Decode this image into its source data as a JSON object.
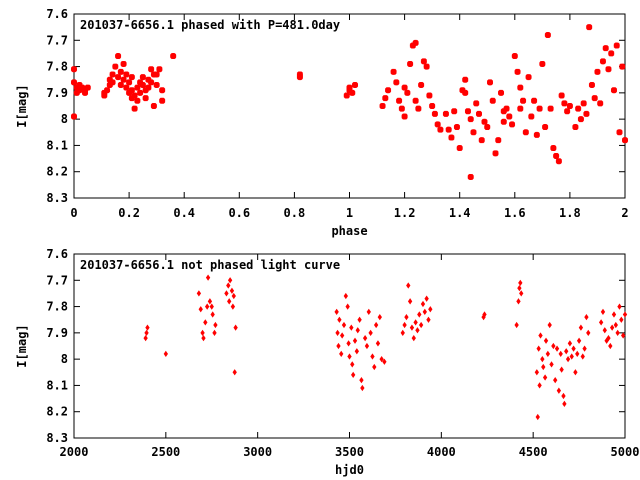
{
  "chart_data": [
    {
      "type": "scatter",
      "title": "201037-6656.1 phased with P=481.0day",
      "xlabel": "phase",
      "ylabel": "I[mag]",
      "xlim": [
        0,
        2
      ],
      "ylim": [
        8.3,
        7.6
      ],
      "y_inverted": true,
      "xticks": [
        0,
        0.2,
        0.4,
        0.6,
        0.8,
        1,
        1.2,
        1.4,
        1.6,
        1.8,
        2
      ],
      "xtick_labels": [
        "0",
        "0.2",
        "0.4",
        "0.6",
        "0.8",
        "1",
        "1.2",
        "1.4",
        "1.6",
        "1.8",
        "2"
      ],
      "yticks": [
        7.6,
        7.7,
        7.8,
        7.9,
        8,
        8.1,
        8.2,
        8.3
      ],
      "ytick_labels": [
        "7.6",
        "7.7",
        "7.8",
        "7.9",
        "8",
        "8.1",
        "8.2",
        "8.3"
      ],
      "marker": "star",
      "color": "#ff0000",
      "points": [
        [
          0.0,
          7.81
        ],
        [
          0.0,
          7.86
        ],
        [
          0.0,
          7.99
        ],
        [
          0.01,
          7.88
        ],
        [
          0.01,
          7.9
        ],
        [
          0.02,
          7.87
        ],
        [
          0.02,
          7.89
        ],
        [
          0.03,
          7.88
        ],
        [
          0.04,
          7.9
        ],
        [
          0.04,
          7.89
        ],
        [
          0.05,
          7.88
        ],
        [
          0.11,
          7.9
        ],
        [
          0.11,
          7.91
        ],
        [
          0.12,
          7.89
        ],
        [
          0.13,
          7.87
        ],
        [
          0.13,
          7.85
        ],
        [
          0.14,
          7.83
        ],
        [
          0.14,
          7.86
        ],
        [
          0.15,
          7.8
        ],
        [
          0.16,
          7.76
        ],
        [
          0.16,
          7.84
        ],
        [
          0.17,
          7.82
        ],
        [
          0.17,
          7.87
        ],
        [
          0.18,
          7.79
        ],
        [
          0.18,
          7.85
        ],
        [
          0.19,
          7.83
        ],
        [
          0.19,
          7.88
        ],
        [
          0.2,
          7.9
        ],
        [
          0.2,
          7.86
        ],
        [
          0.21,
          7.92
        ],
        [
          0.21,
          7.84
        ],
        [
          0.21,
          7.89
        ],
        [
          0.22,
          7.96
        ],
        [
          0.22,
          7.91
        ],
        [
          0.23,
          7.88
        ],
        [
          0.23,
          7.93
        ],
        [
          0.24,
          7.9
        ],
        [
          0.24,
          7.86
        ],
        [
          0.25,
          7.87
        ],
        [
          0.25,
          7.84
        ],
        [
          0.26,
          7.89
        ],
        [
          0.26,
          7.92
        ],
        [
          0.27,
          7.88
        ],
        [
          0.27,
          7.85
        ],
        [
          0.28,
          7.81
        ],
        [
          0.28,
          7.86
        ],
        [
          0.29,
          7.83
        ],
        [
          0.29,
          7.95
        ],
        [
          0.3,
          7.83
        ],
        [
          0.3,
          7.87
        ],
        [
          0.31,
          7.81
        ],
        [
          0.32,
          7.89
        ],
        [
          0.32,
          7.93
        ],
        [
          0.36,
          7.76
        ],
        [
          0.82,
          7.83
        ],
        [
          0.82,
          7.84
        ],
        [
          0.99,
          7.91
        ],
        [
          1.0,
          7.89
        ],
        [
          1.0,
          7.88
        ],
        [
          1.01,
          7.9
        ],
        [
          1.02,
          7.87
        ],
        [
          1.12,
          7.95
        ],
        [
          1.13,
          7.92
        ],
        [
          1.14,
          7.89
        ],
        [
          1.16,
          7.82
        ],
        [
          1.17,
          7.86
        ],
        [
          1.18,
          7.93
        ],
        [
          1.19,
          7.96
        ],
        [
          1.2,
          7.99
        ],
        [
          1.2,
          7.88
        ],
        [
          1.21,
          7.9
        ],
        [
          1.22,
          7.79
        ],
        [
          1.23,
          7.72
        ],
        [
          1.24,
          7.71
        ],
        [
          1.24,
          7.93
        ],
        [
          1.25,
          7.96
        ],
        [
          1.26,
          7.87
        ],
        [
          1.27,
          7.78
        ],
        [
          1.28,
          7.8
        ],
        [
          1.29,
          7.91
        ],
        [
          1.3,
          7.95
        ],
        [
          1.31,
          7.98
        ],
        [
          1.32,
          8.02
        ],
        [
          1.33,
          8.04
        ],
        [
          1.35,
          7.98
        ],
        [
          1.36,
          8.04
        ],
        [
          1.37,
          8.07
        ],
        [
          1.38,
          7.97
        ],
        [
          1.39,
          8.03
        ],
        [
          1.4,
          8.11
        ],
        [
          1.41,
          7.89
        ],
        [
          1.42,
          7.85
        ],
        [
          1.42,
          7.9
        ],
        [
          1.43,
          7.97
        ],
        [
          1.44,
          8.0
        ],
        [
          1.44,
          8.22
        ],
        [
          1.45,
          8.05
        ],
        [
          1.46,
          7.94
        ],
        [
          1.47,
          7.98
        ],
        [
          1.48,
          8.08
        ],
        [
          1.49,
          8.01
        ],
        [
          1.5,
          8.03
        ],
        [
          1.51,
          7.86
        ],
        [
          1.52,
          7.93
        ],
        [
          1.53,
          8.13
        ],
        [
          1.54,
          8.08
        ],
        [
          1.55,
          7.9
        ],
        [
          1.56,
          7.97
        ],
        [
          1.56,
          8.01
        ],
        [
          1.57,
          7.96
        ],
        [
          1.58,
          7.99
        ],
        [
          1.59,
          8.02
        ],
        [
          1.6,
          7.76
        ],
        [
          1.61,
          7.82
        ],
        [
          1.62,
          7.88
        ],
        [
          1.62,
          7.96
        ],
        [
          1.63,
          7.93
        ],
        [
          1.64,
          8.05
        ],
        [
          1.65,
          7.84
        ],
        [
          1.66,
          7.99
        ],
        [
          1.67,
          7.93
        ],
        [
          1.68,
          8.06
        ],
        [
          1.69,
          7.96
        ],
        [
          1.7,
          7.79
        ],
        [
          1.71,
          8.03
        ],
        [
          1.72,
          7.68
        ],
        [
          1.73,
          7.96
        ],
        [
          1.74,
          8.11
        ],
        [
          1.75,
          8.14
        ],
        [
          1.76,
          8.16
        ],
        [
          1.77,
          7.91
        ],
        [
          1.78,
          7.94
        ],
        [
          1.79,
          7.97
        ],
        [
          1.8,
          7.95
        ],
        [
          1.82,
          8.03
        ],
        [
          1.83,
          7.96
        ],
        [
          1.84,
          8.0
        ],
        [
          1.85,
          7.94
        ],
        [
          1.86,
          7.98
        ],
        [
          1.87,
          7.65
        ],
        [
          1.88,
          7.87
        ],
        [
          1.89,
          7.92
        ],
        [
          1.9,
          7.82
        ],
        [
          1.91,
          7.94
        ],
        [
          1.92,
          7.78
        ],
        [
          1.93,
          7.73
        ],
        [
          1.94,
          7.81
        ],
        [
          1.95,
          7.75
        ],
        [
          1.96,
          7.89
        ],
        [
          1.97,
          7.72
        ],
        [
          1.98,
          8.05
        ],
        [
          1.99,
          7.8
        ],
        [
          2.0,
          8.08
        ]
      ]
    },
    {
      "type": "scatter",
      "title": "201037-6656.1 not phased light curve",
      "xlabel": "hjd0",
      "ylabel": "I[mag]",
      "xlim": [
        2000,
        5000
      ],
      "ylim": [
        8.3,
        7.6
      ],
      "y_inverted": true,
      "xticks": [
        2000,
        2500,
        3000,
        3500,
        4000,
        4500,
        5000
      ],
      "xtick_labels": [
        "2000",
        "2500",
        "3000",
        "3500",
        "4000",
        "4500",
        "5000"
      ],
      "yticks": [
        7.6,
        7.7,
        7.8,
        7.9,
        8,
        8.1,
        8.2,
        8.3
      ],
      "ytick_labels": [
        "7.6",
        "7.7",
        "7.8",
        "7.9",
        "8",
        "8.1",
        "8.2",
        "8.3"
      ],
      "marker": "diamond",
      "color": "#ff0000",
      "points": [
        [
          2390,
          7.92
        ],
        [
          2395,
          7.9
        ],
        [
          2400,
          7.88
        ],
        [
          2500,
          7.98
        ],
        [
          2680,
          7.75
        ],
        [
          2690,
          7.81
        ],
        [
          2700,
          7.9
        ],
        [
          2705,
          7.92
        ],
        [
          2715,
          7.86
        ],
        [
          2725,
          7.8
        ],
        [
          2730,
          7.69
        ],
        [
          2740,
          7.78
        ],
        [
          2750,
          7.8
        ],
        [
          2755,
          7.83
        ],
        [
          2765,
          7.9
        ],
        [
          2770,
          7.87
        ],
        [
          2830,
          7.75
        ],
        [
          2840,
          7.72
        ],
        [
          2845,
          7.78
        ],
        [
          2850,
          7.7
        ],
        [
          2860,
          7.74
        ],
        [
          2865,
          7.8
        ],
        [
          2870,
          7.76
        ],
        [
          2875,
          8.05
        ],
        [
          2880,
          7.88
        ],
        [
          3430,
          7.82
        ],
        [
          3435,
          7.9
        ],
        [
          3440,
          7.95
        ],
        [
          3445,
          7.85
        ],
        [
          3455,
          7.98
        ],
        [
          3460,
          7.91
        ],
        [
          3470,
          7.87
        ],
        [
          3480,
          7.76
        ],
        [
          3490,
          7.8
        ],
        [
          3495,
          7.94
        ],
        [
          3500,
          7.99
        ],
        [
          3510,
          7.88
        ],
        [
          3515,
          8.02
        ],
        [
          3520,
          8.06
        ],
        [
          3530,
          7.93
        ],
        [
          3540,
          7.97
        ],
        [
          3545,
          7.89
        ],
        [
          3555,
          7.85
        ],
        [
          3565,
          8.08
        ],
        [
          3570,
          8.11
        ],
        [
          3585,
          7.92
        ],
        [
          3595,
          7.95
        ],
        [
          3605,
          7.82
        ],
        [
          3615,
          7.9
        ],
        [
          3625,
          7.99
        ],
        [
          3635,
          8.03
        ],
        [
          3645,
          7.87
        ],
        [
          3655,
          7.94
        ],
        [
          3665,
          7.84
        ],
        [
          3675,
          8.0
        ],
        [
          3690,
          8.01
        ],
        [
          3790,
          7.9
        ],
        [
          3800,
          7.87
        ],
        [
          3810,
          7.84
        ],
        [
          3820,
          7.72
        ],
        [
          3830,
          7.78
        ],
        [
          3840,
          7.88
        ],
        [
          3850,
          7.92
        ],
        [
          3860,
          7.86
        ],
        [
          3870,
          7.89
        ],
        [
          3880,
          7.83
        ],
        [
          3890,
          7.87
        ],
        [
          3900,
          7.79
        ],
        [
          3910,
          7.82
        ],
        [
          3920,
          7.77
        ],
        [
          3930,
          7.85
        ],
        [
          3940,
          7.81
        ],
        [
          4230,
          7.84
        ],
        [
          4235,
          7.83
        ],
        [
          4410,
          7.87
        ],
        [
          4420,
          7.78
        ],
        [
          4425,
          7.73
        ],
        [
          4430,
          7.71
        ],
        [
          4435,
          7.75
        ],
        [
          4520,
          8.05
        ],
        [
          4525,
          8.22
        ],
        [
          4530,
          7.96
        ],
        [
          4535,
          8.1
        ],
        [
          4540,
          7.91
        ],
        [
          4550,
          8.0
        ],
        [
          4555,
          8.03
        ],
        [
          4565,
          8.07
        ],
        [
          4570,
          7.93
        ],
        [
          4580,
          7.98
        ],
        [
          4590,
          7.87
        ],
        [
          4600,
          8.02
        ],
        [
          4610,
          7.95
        ],
        [
          4620,
          8.08
        ],
        [
          4630,
          7.96
        ],
        [
          4640,
          8.12
        ],
        [
          4650,
          7.98
        ],
        [
          4655,
          8.04
        ],
        [
          4665,
          8.14
        ],
        [
          4670,
          8.17
        ],
        [
          4680,
          7.97
        ],
        [
          4690,
          8.0
        ],
        [
          4700,
          7.94
        ],
        [
          4710,
          7.99
        ],
        [
          4720,
          7.96
        ],
        [
          4730,
          8.05
        ],
        [
          4740,
          7.98
        ],
        [
          4750,
          7.93
        ],
        [
          4760,
          7.88
        ],
        [
          4770,
          7.99
        ],
        [
          4780,
          7.96
        ],
        [
          4790,
          7.84
        ],
        [
          4800,
          7.9
        ],
        [
          4870,
          7.86
        ],
        [
          4880,
          7.82
        ],
        [
          4890,
          7.89
        ],
        [
          4900,
          7.93
        ],
        [
          4910,
          7.92
        ],
        [
          4920,
          7.95
        ],
        [
          4930,
          7.88
        ],
        [
          4940,
          7.83
        ],
        [
          4950,
          7.87
        ],
        [
          4960,
          7.9
        ],
        [
          4970,
          7.8
        ],
        [
          4980,
          7.85
        ],
        [
          4990,
          7.91
        ],
        [
          5000,
          7.83
        ]
      ]
    }
  ]
}
